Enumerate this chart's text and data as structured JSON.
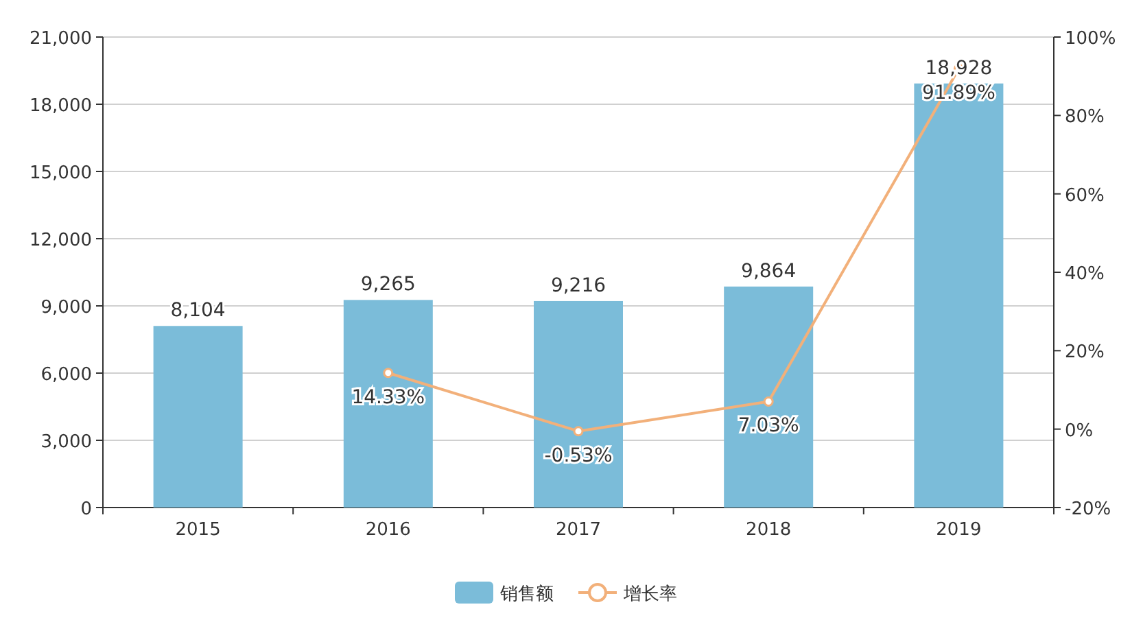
{
  "chart_data": {
    "type": "bar",
    "categories": [
      "2015",
      "2016",
      "2017",
      "2018",
      "2019"
    ],
    "series": [
      {
        "name": "销售额",
        "color": "#7bbcd9",
        "values": [
          8104,
          9265,
          9216,
          9864,
          18928
        ],
        "value_labels": [
          "8,104",
          "9,265",
          "9,216",
          "9,864",
          "18,928"
        ]
      },
      {
        "name": "增长率",
        "type": "line",
        "axis": "y2",
        "color": "#f2b07a",
        "marker": "circle",
        "values": [
          null,
          14.33,
          -0.53,
          7.03,
          91.89
        ],
        "value_labels": [
          null,
          "14.33%",
          "-0.53%",
          "7.03%",
          "91.89%"
        ]
      }
    ],
    "ylim": [
      0,
      21000
    ],
    "yticks": [
      {
        "value": 0,
        "label": "0"
      },
      {
        "value": 3000,
        "label": "3,000"
      },
      {
        "value": 6000,
        "label": "6,000"
      },
      {
        "value": 9000,
        "label": "9,000"
      },
      {
        "value": 12000,
        "label": "12,000"
      },
      {
        "value": 15000,
        "label": "15,000"
      },
      {
        "value": 18000,
        "label": "18,000"
      },
      {
        "value": 21000,
        "label": "21,000"
      }
    ],
    "y2lim": [
      -20,
      100
    ],
    "y2ticks": [
      {
        "value": -20,
        "label": "-20%"
      },
      {
        "value": 0,
        "label": "0%"
      },
      {
        "value": 20,
        "label": "20%"
      },
      {
        "value": 40,
        "label": "40%"
      },
      {
        "value": 60,
        "label": "60%"
      },
      {
        "value": 80,
        "label": "80%"
      },
      {
        "value": 100,
        "label": "100%"
      }
    ],
    "grid": "y",
    "legend": "bottom"
  }
}
